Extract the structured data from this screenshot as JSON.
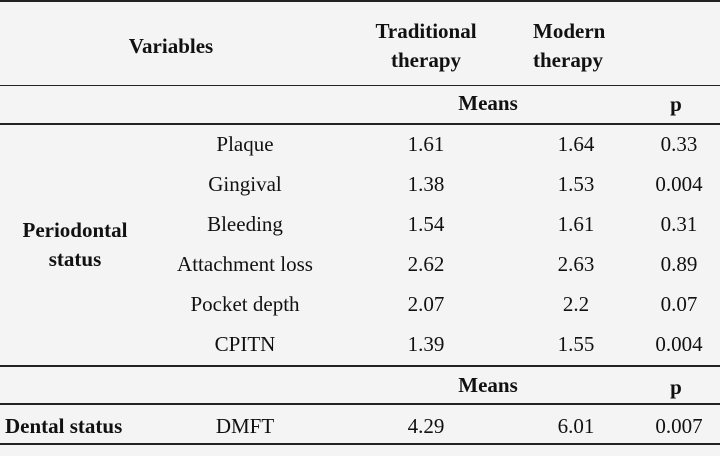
{
  "header": {
    "variables": "Variables",
    "col1_line1": "Traditional",
    "col1_line2": "therapy",
    "col2_line1": "Modern",
    "col2_line2": "therapy",
    "means": "Means",
    "p": "p"
  },
  "periodontal": {
    "group_line1": "Periodontal",
    "group_line2": "status",
    "rows": [
      {
        "label": "Plaque",
        "traditional": "1.61",
        "modern": "1.64",
        "p": "0.33"
      },
      {
        "label": "Gingival",
        "traditional": "1.38",
        "modern": "1.53",
        "p": "0.004"
      },
      {
        "label": "Bleeding",
        "traditional": "1.54",
        "modern": "1.61",
        "p": "0.31"
      },
      {
        "label": "Attachment loss",
        "traditional": "2.62",
        "modern": "2.63",
        "p": "0.89"
      },
      {
        "label": "Pocket depth",
        "traditional": "2.07",
        "modern": "2.2",
        "p": "0.07"
      },
      {
        "label": "CPITN",
        "traditional": "1.39",
        "modern": "1.55",
        "p": "0.004"
      }
    ]
  },
  "dental_header": {
    "means": "Means",
    "p": "p"
  },
  "dental": {
    "group": "Dental status",
    "rows": [
      {
        "label": "DMFT",
        "traditional": "4.29",
        "modern": "6.01",
        "p": "0.007"
      }
    ]
  }
}
